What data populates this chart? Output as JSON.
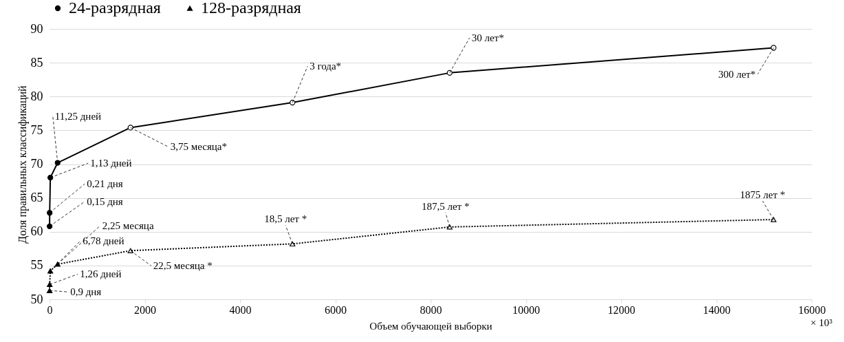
{
  "chart_data": {
    "type": "line",
    "xlabel": "Объем обучающей выборки",
    "ylabel": "Доля правильных классификаций",
    "x": [
      2,
      3,
      17,
      170,
      1700,
      5100,
      8400,
      15200
    ],
    "series": [
      {
        "name": "24-разрядная",
        "color": "#000000",
        "marker": "circle",
        "line_style": "solid",
        "values": [
          60.8,
          62.8,
          68.0,
          70.2,
          75.4,
          79.1,
          83.5,
          87.2
        ]
      },
      {
        "name": "128-разрядная",
        "color": "#000000",
        "marker": "triangle",
        "line_style": "dotted",
        "values": [
          51.3,
          52.2,
          54.2,
          55.2,
          57.2,
          58.2,
          60.7,
          61.8
        ]
      }
    ],
    "xlim": [
      0,
      16000
    ],
    "xticks": [
      0,
      2000,
      4000,
      6000,
      8000,
      10000,
      12000,
      14000,
      16000
    ],
    "ylim": [
      50,
      90
    ],
    "yticks": [
      50,
      55,
      60,
      65,
      70,
      75,
      80,
      85,
      90
    ],
    "grid": "y",
    "legend": "top",
    "annotations": [
      {
        "text": "0,15 дня",
        "x": 2,
        "y": 60.8
      },
      {
        "text": "0,21 дня",
        "x": 3,
        "y": 62.8
      },
      {
        "text": "1,13 дней",
        "x": 17,
        "y": 68.0
      },
      {
        "text": "11,25 дней",
        "x": 170,
        "y": 70.2
      },
      {
        "text": "3,75 месяца*",
        "x": 1700,
        "y": 75.4
      },
      {
        "text": "3 года*",
        "x": 5100,
        "y": 79.1
      },
      {
        "text": "30 лет*",
        "x": 8400,
        "y": 83.5
      },
      {
        "text": "300 лет*",
        "x": 15200,
        "y": 87.2
      },
      {
        "text": "0,9 дня",
        "x": 2,
        "y": 51.3
      },
      {
        "text": "1,26 дней",
        "x": 3,
        "y": 52.2
      },
      {
        "text": "6,78 дней",
        "x": 17,
        "y": 54.2
      },
      {
        "text": "2,25 месяца",
        "x": 170,
        "y": 55.2
      },
      {
        "text": "22,5 месяца *",
        "x": 1700,
        "y": 57.2
      },
      {
        "text": "18,5 лет *",
        "x": 5100,
        "y": 58.2
      },
      {
        "text": "187,5 лет *",
        "x": 8400,
        "y": 60.7
      },
      {
        "text": "1875 лет *",
        "x": 15200,
        "y": 61.8
      },
      "× 10³"
    ]
  }
}
